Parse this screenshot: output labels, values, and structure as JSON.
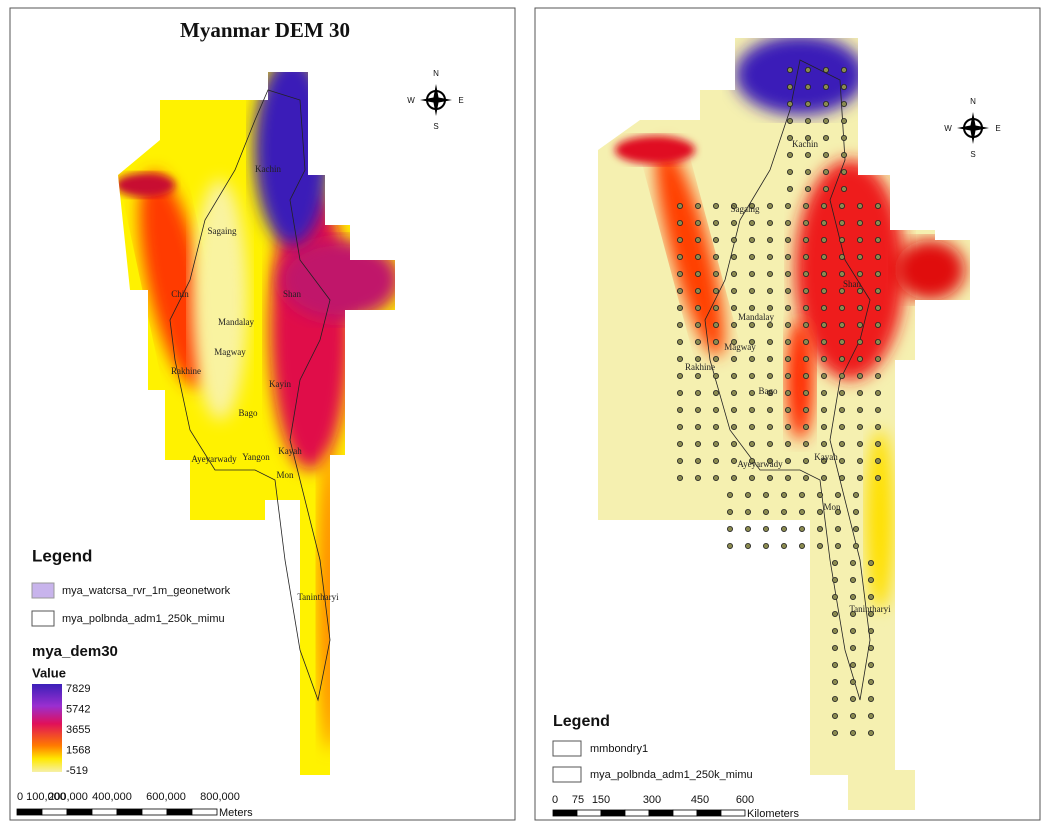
{
  "left_map": {
    "title": "Myanmar DEM 30",
    "compass": {
      "n": "N",
      "s": "S",
      "e": "E",
      "w": "W"
    },
    "regions": [
      "Kachin",
      "Sagaing",
      "Chin",
      "Mandalay",
      "Shan",
      "Magway",
      "Rakhine",
      "Bago",
      "Kayin",
      "Yangon",
      "Ayeyarwady",
      "Kayah",
      "Mon",
      "Tanintharyi"
    ],
    "legend": {
      "title": "Legend",
      "layers": [
        "mya_watcrsa_rvr_1m_geonetwork",
        "mya_polbnda_adm1_250k_mimu"
      ],
      "raster": "mya_dem30",
      "value_title": "Value",
      "ramp": [
        "7829",
        "5742",
        "3655",
        "1568",
        "-519"
      ]
    },
    "scale": {
      "labels": [
        "0",
        "100,000",
        "200,000",
        "400,000",
        "600,000",
        "800,000"
      ],
      "unit": "Meters"
    }
  },
  "right_map": {
    "compass": {
      "n": "N",
      "s": "S",
      "e": "E",
      "w": "W"
    },
    "regions": [
      "Kachin",
      "Sagaing",
      "Mandalay",
      "Shan",
      "Magway",
      "Rakhine",
      "Bago",
      "Ayeyarwady",
      "Kayah",
      "Mon",
      "Tanintharyi"
    ],
    "legend": {
      "title": "Legend",
      "layers": [
        "mmbondry1",
        "mya_polbnda_adm1_250k_mimu"
      ]
    },
    "scale": {
      "labels": [
        "0",
        "75",
        "150",
        "300",
        "450",
        "600"
      ],
      "unit": "Kilometers"
    }
  }
}
